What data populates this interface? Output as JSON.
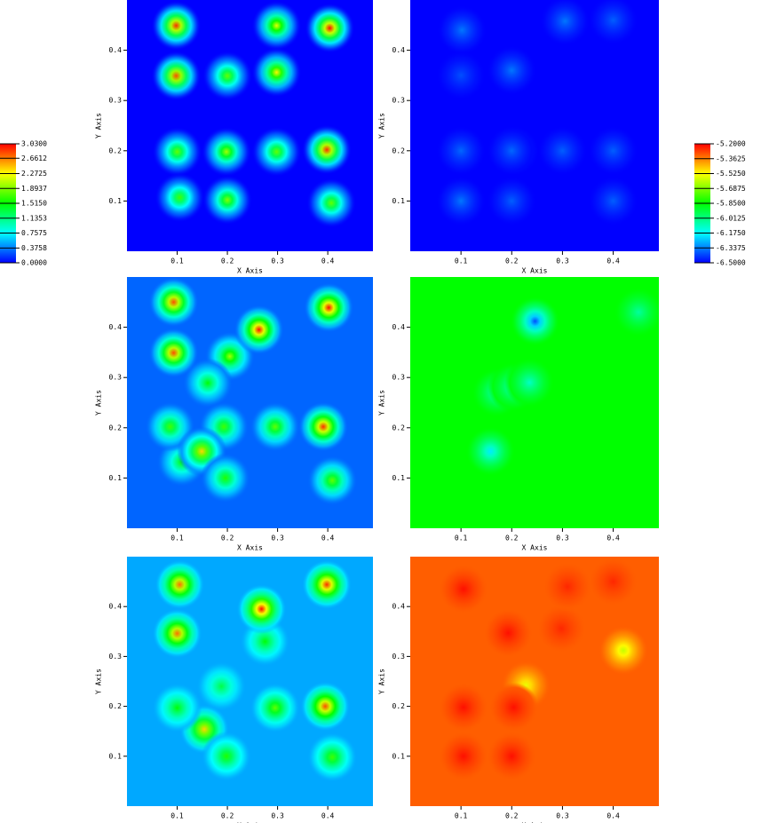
{
  "chart_data": [
    {
      "type": "colorbar",
      "colors": [
        "#0000ff",
        "#00ffff",
        "#00ff00",
        "#ffff00",
        "#ff0000"
      ],
      "ticks": [
        {
          "value": 3.03,
          "label": "3.0300"
        },
        {
          "value": 2.6612,
          "label": "2.6612"
        },
        {
          "value": 2.2725,
          "label": "2.2725"
        },
        {
          "value": 1.8937,
          "label": "1.8937"
        },
        {
          "value": 1.515,
          "label": "1.5150"
        },
        {
          "value": 1.1353,
          "label": "1.1353"
        },
        {
          "value": 0.7575,
          "label": "0.7575"
        },
        {
          "value": 0.3758,
          "label": "0.3758"
        },
        {
          "value": 0,
          "label": "0.0000"
        }
      ]
    },
    {
      "type": "colorbar",
      "colors": [
        "#0000ff",
        "#00ffff",
        "#00ff00",
        "#ffff00",
        "#ff0000"
      ],
      "ticks": [
        {
          "value": -5.2,
          "label": "-5.2000"
        },
        {
          "value": -5.3625,
          "label": "-5.3625"
        },
        {
          "value": -5.525,
          "label": "-5.5250"
        },
        {
          "value": -5.6875,
          "label": "-5.6875"
        },
        {
          "value": -5.85,
          "label": "-5.8500"
        },
        {
          "value": -6.0125,
          "label": "-6.0125"
        },
        {
          "value": -6.175,
          "label": "-6.1750"
        },
        {
          "value": -6.3375,
          "label": "-6.3375"
        },
        {
          "value": -6.5,
          "label": "-6.5000"
        }
      ]
    },
    {
      "type": "heatmap",
      "x_label": "X Axis",
      "y_label": "Y Axis",
      "xlim": [
        0,
        0.49
      ],
      "ylim": [
        0,
        0.5
      ],
      "xticks": [
        0.1,
        0.2,
        0.3,
        0.4
      ],
      "yticks": [
        0.1,
        0.2,
        0.3,
        0.4
      ],
      "background": 0,
      "x": [
        0.098,
        0.098,
        0.2,
        0.298,
        0.298,
        0.404,
        0.1,
        0.198,
        0.298,
        0.398,
        0.105,
        0.2,
        0.407
      ],
      "y": [
        0.449,
        0.349,
        0.349,
        0.449,
        0.356,
        0.444,
        0.198,
        0.198,
        0.198,
        0.202,
        0.107,
        0.102,
        0.096
      ],
      "values": [
        2.9,
        2.8,
        1.8,
        2.2,
        2.3,
        3.0,
        1.8,
        2.0,
        1.8,
        2.9,
        1.7,
        1.9,
        1.8
      ]
    },
    {
      "type": "heatmap",
      "x_label": "X Axis",
      "y_label": "Y Axis",
      "xlim": [
        0,
        0.49
      ],
      "ylim": [
        0,
        0.5
      ],
      "xticks": [
        0.1,
        0.2,
        0.3,
        0.4
      ],
      "yticks": [
        0.1,
        0.2,
        0.3,
        0.4
      ],
      "background": -6.5,
      "x": [
        0.102,
        0.2,
        0.305,
        0.4,
        0.1,
        0.205,
        0.1,
        0.2,
        0.3,
        0.4,
        0.1,
        0.2,
        0.4
      ],
      "y": [
        0.44,
        0.36,
        0.458,
        0.46,
        0.35,
        0.2,
        0.2,
        0.2,
        0.2,
        0.2,
        0.1,
        0.1,
        0.1
      ],
      "values": [
        -6.35,
        -6.35,
        -6.35,
        -6.38,
        -6.4,
        -6.35,
        -6.37,
        -6.37,
        -6.38,
        -6.38,
        -6.35,
        -6.38,
        -6.38
      ]
    },
    {
      "type": "heatmap",
      "x_label": "X Axis",
      "y_label": "Y Axis",
      "xlim": [
        0,
        0.49
      ],
      "ylim": [
        0,
        0.5
      ],
      "xticks": [
        0.1,
        0.2,
        0.3,
        0.4
      ],
      "yticks": [
        0.1,
        0.2,
        0.3,
        0.4
      ],
      "background": 0.3,
      "x": [
        0.205,
        0.161,
        0.109,
        0.193,
        0.093,
        0.093,
        0.402,
        0.263,
        0.295,
        0.391,
        0.086,
        0.149,
        0.196,
        0.409
      ],
      "y": [
        0.342,
        0.289,
        0.132,
        0.202,
        0.45,
        0.349,
        0.439,
        0.395,
        0.202,
        0.202,
        0.202,
        0.153,
        0.1,
        0.095
      ],
      "values": [
        2.0,
        1.5,
        1.5,
        1.7,
        2.8,
        2.8,
        3.0,
        3.0,
        1.8,
        2.9,
        1.7,
        2.4,
        1.6,
        1.8
      ]
    },
    {
      "type": "heatmap",
      "x_label": "X Axis",
      "y_label": "Y Axis",
      "xlim": [
        0,
        0.49
      ],
      "ylim": [
        0,
        0.5
      ],
      "xticks": [
        0.1,
        0.2,
        0.3,
        0.4
      ],
      "yticks": [
        0.1,
        0.2,
        0.3,
        0.4
      ],
      "background": -5.85,
      "x": [
        0.246,
        0.17,
        0.202,
        0.235,
        0.158,
        0.45
      ],
      "y": [
        0.412,
        0.27,
        0.281,
        0.29,
        0.153,
        0.43
      ],
      "values": [
        -6.4,
        -6.1,
        -6.1,
        -6.1,
        -6.2,
        -6.05
      ]
    },
    {
      "type": "heatmap",
      "x_label": "X Axis",
      "y_label": "Y Axis",
      "xlim": [
        0,
        0.49
      ],
      "ylim": [
        0,
        0.5
      ],
      "xticks": [
        0.1,
        0.2,
        0.3,
        0.4
      ],
      "yticks": [
        0.1,
        0.2,
        0.3,
        0.4
      ],
      "background": 0.5,
      "x": [
        0.275,
        0.188,
        0.105,
        0.1,
        0.398,
        0.268,
        0.154,
        0.198,
        0.295,
        0.395,
        0.1,
        0.409
      ],
      "y": [
        0.33,
        0.24,
        0.444,
        0.346,
        0.444,
        0.395,
        0.154,
        0.1,
        0.197,
        0.2,
        0.197,
        0.098
      ],
      "values": [
        1.5,
        1.3,
        2.7,
        2.7,
        2.9,
        3.0,
        2.4,
        1.6,
        1.8,
        2.8,
        1.5,
        1.7
      ]
    },
    {
      "type": "heatmap",
      "x_label": "X Axis",
      "y_label": "Y Axis",
      "xlim": [
        0,
        0.49
      ],
      "ylim": [
        0,
        0.5
      ],
      "xticks": [
        0.1,
        0.2,
        0.3,
        0.4
      ],
      "yticks": [
        0.1,
        0.2,
        0.3,
        0.4
      ],
      "background": -5.32,
      "x": [
        0.42,
        0.228,
        0.105,
        0.193,
        0.298,
        0.105,
        0.204,
        0.105,
        0.2,
        0.4,
        0.31
      ],
      "y": [
        0.312,
        0.242,
        0.435,
        0.347,
        0.356,
        0.198,
        0.198,
        0.1,
        0.1,
        0.45,
        0.44
      ],
      "values": [
        -5.6,
        -5.55,
        -5.22,
        -5.22,
        -5.25,
        -5.22,
        -5.22,
        -5.22,
        -5.22,
        -5.25,
        -5.25
      ]
    }
  ]
}
